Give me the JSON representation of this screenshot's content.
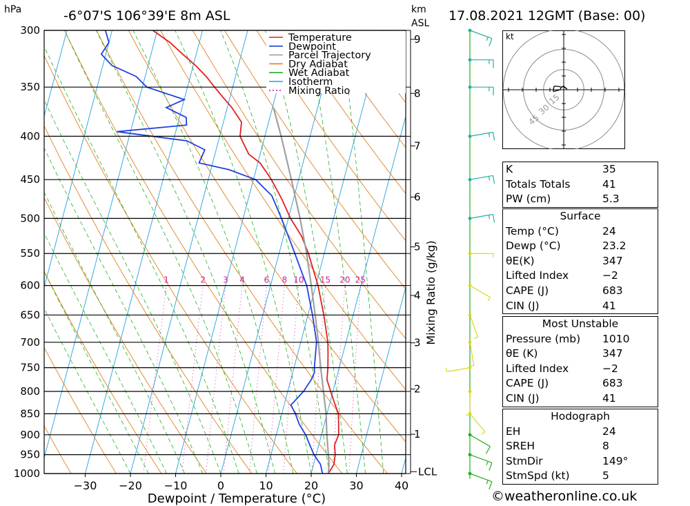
{
  "header": {
    "hpa_label": "hPa",
    "location": "-6°07'S  106°39'E  8m  ASL",
    "km_label": "km",
    "asl_label": "ASL",
    "datetime": "17.08.2021  12GMT  (Base: 00)"
  },
  "chart_data": {
    "type": "line",
    "title": "-6°07'S  106°39'E  8m  ASL",
    "xlabel": "Dewpoint / Temperature (°C)",
    "ylabel": "hPa",
    "ylabel_right": "Mixing Ratio (g/kg)",
    "x_ticks": [
      -30,
      -20,
      -10,
      0,
      10,
      20,
      30,
      40
    ],
    "x_tick_labels": [
      "−30",
      "−20",
      "−10",
      "0",
      "10",
      "20",
      "30",
      "40"
    ],
    "pressure_levels": [
      300,
      350,
      400,
      450,
      500,
      550,
      600,
      650,
      700,
      750,
      800,
      850,
      900,
      950,
      1000
    ],
    "km_ticks": [
      1,
      2,
      3,
      4,
      5,
      6,
      7,
      8,
      9
    ],
    "lcl_label": "LCL",
    "mixing_ratio_labels": [
      "1",
      "2",
      "3",
      "4",
      "6",
      "8",
      "10",
      "15",
      "20",
      "25"
    ],
    "mixing_ratio_values": [
      1,
      2,
      3,
      4,
      6,
      8,
      10,
      15,
      20,
      25
    ],
    "legend": [
      {
        "name": "Temperature",
        "color": "#e02020",
        "style": "solid"
      },
      {
        "name": "Dewpoint",
        "color": "#2040e0",
        "style": "solid"
      },
      {
        "name": "Parcel Trajectory",
        "color": "#a0a0a0",
        "style": "solid"
      },
      {
        "name": "Dry Adiabat",
        "color": "#e08020",
        "style": "solid"
      },
      {
        "name": "Wet Adiabat",
        "color": "#20b020",
        "style": "solid"
      },
      {
        "name": "Isotherm",
        "color": "#20a0e0",
        "style": "solid"
      },
      {
        "name": "Mixing Ratio",
        "color": "#d020a0",
        "style": "dotted"
      }
    ],
    "series": [
      {
        "name": "Temperature",
        "color": "#e02020",
        "points": [
          [
            1000,
            23.8
          ],
          [
            975,
            24.5
          ],
          [
            950,
            24.2
          ],
          [
            925,
            23.5
          ],
          [
            900,
            23.8
          ],
          [
            875,
            23.2
          ],
          [
            850,
            22.5
          ],
          [
            825,
            21.0
          ],
          [
            800,
            19.5
          ],
          [
            775,
            18.0
          ],
          [
            750,
            17.5
          ],
          [
            725,
            16.8
          ],
          [
            700,
            16.0
          ],
          [
            650,
            13.5
          ],
          [
            600,
            10.5
          ],
          [
            550,
            6.5
          ],
          [
            525,
            4.0
          ],
          [
            500,
            0.5
          ],
          [
            475,
            -2.5
          ],
          [
            450,
            -6.0
          ],
          [
            430,
            -9.5
          ],
          [
            420,
            -12.5
          ],
          [
            400,
            -15.5
          ],
          [
            385,
            -16.0
          ],
          [
            370,
            -19.0
          ],
          [
            360,
            -21.5
          ],
          [
            350,
            -24.0
          ],
          [
            340,
            -26.5
          ],
          [
            330,
            -29.5
          ],
          [
            320,
            -33.0
          ],
          [
            310,
            -36.5
          ],
          [
            300,
            -41.0
          ]
        ]
      },
      {
        "name": "Dewpoint",
        "color": "#2040e0",
        "points": [
          [
            1000,
            22.5
          ],
          [
            975,
            21.5
          ],
          [
            950,
            19.5
          ],
          [
            925,
            18.0
          ],
          [
            900,
            16.5
          ],
          [
            875,
            14.5
          ],
          [
            850,
            13.0
          ],
          [
            830,
            11.5
          ],
          [
            815,
            12.5
          ],
          [
            800,
            13.5
          ],
          [
            775,
            14.5
          ],
          [
            760,
            14.8
          ],
          [
            750,
            14.5
          ],
          [
            725,
            14.0
          ],
          [
            700,
            13.5
          ],
          [
            650,
            11.0
          ],
          [
            600,
            8.0
          ],
          [
            550,
            3.5
          ],
          [
            500,
            -1.5
          ],
          [
            470,
            -5.0
          ],
          [
            450,
            -9.5
          ],
          [
            438,
            -16.0
          ],
          [
            430,
            -23.0
          ],
          [
            415,
            -22.5
          ],
          [
            405,
            -27.0
          ],
          [
            395,
            -43.0
          ],
          [
            388,
            -28.0
          ],
          [
            380,
            -28.5
          ],
          [
            370,
            -33.5
          ],
          [
            362,
            -30.0
          ],
          [
            350,
            -39.0
          ],
          [
            340,
            -42.0
          ],
          [
            330,
            -48.0
          ],
          [
            320,
            -51.0
          ],
          [
            310,
            -50.0
          ],
          [
            300,
            -51.5
          ]
        ]
      },
      {
        "name": "Parcel Trajectory",
        "color": "#a0a0a0",
        "points": [
          [
            1000,
            23.8
          ],
          [
            975,
            23.4
          ],
          [
            950,
            22.7
          ],
          [
            900,
            21.2
          ],
          [
            850,
            19.8
          ],
          [
            800,
            17.9
          ],
          [
            750,
            15.9
          ],
          [
            700,
            13.9
          ],
          [
            650,
            11.6
          ],
          [
            600,
            9.0
          ],
          [
            550,
            6.1
          ],
          [
            500,
            2.6
          ],
          [
            450,
            -1.6
          ],
          [
            400,
            -6.4
          ],
          [
            370,
            -9.8
          ]
        ]
      }
    ]
  },
  "winds": [
    {
      "p": 300,
      "dir": 110,
      "spd": 15
    },
    {
      "p": 325,
      "dir": 90,
      "spd": 15
    },
    {
      "p": 350,
      "dir": 90,
      "spd": 15
    },
    {
      "p": 400,
      "dir": 80,
      "spd": 15
    },
    {
      "p": 450,
      "dir": 80,
      "spd": 15
    },
    {
      "p": 500,
      "dir": 80,
      "spd": 15
    },
    {
      "p": 550,
      "dir": 90,
      "spd": 5
    },
    {
      "p": 600,
      "dir": 120,
      "spd": 5
    },
    {
      "p": 650,
      "dir": 160,
      "spd": 5
    },
    {
      "p": 700,
      "dir": 170,
      "spd": 5
    },
    {
      "p": 750,
      "dir": 260,
      "spd": 5
    },
    {
      "p": 800,
      "dir": 180,
      "spd": 5
    },
    {
      "p": 850,
      "dir": 140,
      "spd": 5
    },
    {
      "p": 900,
      "dir": 120,
      "spd": 10
    },
    {
      "p": 950,
      "dir": 110,
      "spd": 15
    },
    {
      "p": 1000,
      "dir": 110,
      "spd": 15
    }
  ],
  "hodograph": {
    "unit_label": "kt",
    "ring_labels": [
      "15",
      "30",
      "45"
    ]
  },
  "indices": [
    {
      "label": "K",
      "value": "35"
    },
    {
      "label": "Totals Totals",
      "value": "41"
    },
    {
      "label": "PW (cm)",
      "value": "5.3"
    }
  ],
  "surface": {
    "title": "Surface",
    "rows": [
      {
        "label": "Temp (°C)",
        "value": "24"
      },
      {
        "label": "Dewp (°C)",
        "value": "23.2"
      },
      {
        "label": "θE(K)",
        "value": "347"
      },
      {
        "label": "Lifted Index",
        "value": "−2"
      },
      {
        "label": "CAPE (J)",
        "value": "683"
      },
      {
        "label": "CIN (J)",
        "value": "41"
      }
    ]
  },
  "most_unstable": {
    "title": "Most Unstable",
    "rows": [
      {
        "label": "Pressure (mb)",
        "value": "1010"
      },
      {
        "label": "θE (K)",
        "value": "347"
      },
      {
        "label": "Lifted Index",
        "value": "−2"
      },
      {
        "label": "CAPE (J)",
        "value": "683"
      },
      {
        "label": "CIN (J)",
        "value": "41"
      }
    ]
  },
  "hodograph_table": {
    "title": "Hodograph",
    "rows": [
      {
        "label": "EH",
        "value": "24"
      },
      {
        "label": "SREH",
        "value": "8"
      },
      {
        "label": "StmDir",
        "value": "149°"
      },
      {
        "label": "StmSpd (kt)",
        "value": "5"
      }
    ]
  },
  "credit": "©weatheronline.co.uk"
}
